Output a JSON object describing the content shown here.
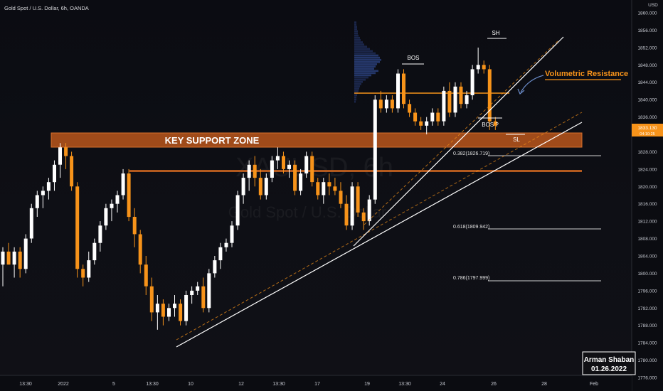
{
  "header": {
    "symbol_title": "Gold Spot / U.S. Dollar, 6h, OANDA"
  },
  "watermark": {
    "symbol": "XAUUSD, 6h",
    "description": "Gold Spot / U.S. Dollar"
  },
  "price_axis": {
    "currency": "USD",
    "ticks": [
      "1776.000",
      "1780.000",
      "1784.000",
      "1788.000",
      "1792.000",
      "1796.000",
      "1800.000",
      "1804.000",
      "1808.000",
      "1812.000",
      "1816.000",
      "1820.000",
      "1824.000",
      "1828.000",
      "1832.000",
      "1836.000",
      "1840.000",
      "1844.000",
      "1848.000",
      "1852.000",
      "1856.000",
      "1860.000"
    ],
    "last_price": "1833.130",
    "last_price_countdown": "04:10:25",
    "last_price_color": "#f7931a"
  },
  "time_axis": {
    "labels": [
      "13:30",
      "2022",
      "5",
      "13:30",
      "10",
      "12",
      "13:30",
      "17",
      "19",
      "13:30",
      "24",
      "26",
      "28",
      "Feb"
    ]
  },
  "annotations": {
    "key_support_zone": "KEY SUPPORT ZONE",
    "volumetric_resistance": "Volumetric Resistance",
    "bos_1": "BOS",
    "bos_2": "BOS ?",
    "swing_high": "SH",
    "stop_loss": "SL",
    "fib_0382": "0.382(1826.719)",
    "fib_0618": "0.618(1809.942)",
    "fib_0786": "0.786(1797.999)"
  },
  "signature": {
    "author": "Arman Shaban",
    "date": "01.26.2022"
  },
  "colors": {
    "bull": "#ffffff",
    "bear": "#f7931a",
    "zone": "#b5541b",
    "accent": "#f7931a",
    "background": "#0c0c10",
    "axis_text": "#c9ccd4"
  },
  "chart_data": {
    "type": "candlestick",
    "title": "Gold Spot / U.S. Dollar, 6h, OANDA",
    "y_range": [
      1776,
      1862
    ],
    "support_zone": [
      1829.3,
      1832.2
    ],
    "resistance_line": 1823,
    "volumetric_resistance": 1841,
    "fib_levels": [
      {
        "label": "0.382",
        "price": 1826.719
      },
      {
        "label": "0.618",
        "price": 1809.942
      },
      {
        "label": "0.786",
        "price": 1797.999
      }
    ],
    "candles": [
      {
        "o": 1802,
        "h": 1806,
        "l": 1797,
        "c": 1805
      },
      {
        "o": 1805,
        "h": 1807,
        "l": 1802,
        "c": 1802
      },
      {
        "o": 1802,
        "h": 1806,
        "l": 1799,
        "c": 1805
      },
      {
        "o": 1805,
        "h": 1806,
        "l": 1799,
        "c": 1801
      },
      {
        "o": 1801,
        "h": 1809,
        "l": 1800,
        "c": 1808
      },
      {
        "o": 1808,
        "h": 1816,
        "l": 1807,
        "c": 1815
      },
      {
        "o": 1815,
        "h": 1819,
        "l": 1813,
        "c": 1818
      },
      {
        "o": 1818,
        "h": 1820,
        "l": 1815,
        "c": 1819
      },
      {
        "o": 1819,
        "h": 1822,
        "l": 1817,
        "c": 1821
      },
      {
        "o": 1821,
        "h": 1826,
        "l": 1819,
        "c": 1825
      },
      {
        "o": 1825,
        "h": 1830,
        "l": 1822,
        "c": 1829
      },
      {
        "o": 1829,
        "h": 1830,
        "l": 1824,
        "c": 1827
      },
      {
        "o": 1827,
        "h": 1828,
        "l": 1819,
        "c": 1820
      },
      {
        "o": 1820,
        "h": 1821,
        "l": 1799,
        "c": 1801
      },
      {
        "o": 1801,
        "h": 1802,
        "l": 1797,
        "c": 1799
      },
      {
        "o": 1799,
        "h": 1805,
        "l": 1798,
        "c": 1803
      },
      {
        "o": 1803,
        "h": 1808,
        "l": 1802,
        "c": 1807
      },
      {
        "o": 1807,
        "h": 1812,
        "l": 1805,
        "c": 1811
      },
      {
        "o": 1811,
        "h": 1816,
        "l": 1810,
        "c": 1815
      },
      {
        "o": 1815,
        "h": 1817,
        "l": 1812,
        "c": 1816
      },
      {
        "o": 1816,
        "h": 1819,
        "l": 1814,
        "c": 1818
      },
      {
        "o": 1818,
        "h": 1824,
        "l": 1817,
        "c": 1823
      },
      {
        "o": 1823,
        "h": 1824,
        "l": 1812,
        "c": 1813
      },
      {
        "o": 1813,
        "h": 1815,
        "l": 1806,
        "c": 1809
      },
      {
        "o": 1809,
        "h": 1810,
        "l": 1800,
        "c": 1802
      },
      {
        "o": 1802,
        "h": 1804,
        "l": 1795,
        "c": 1797
      },
      {
        "o": 1797,
        "h": 1799,
        "l": 1789,
        "c": 1791
      },
      {
        "o": 1791,
        "h": 1795,
        "l": 1787,
        "c": 1793
      },
      {
        "o": 1793,
        "h": 1794,
        "l": 1788,
        "c": 1790
      },
      {
        "o": 1790,
        "h": 1793,
        "l": 1789,
        "c": 1792
      },
      {
        "o": 1792,
        "h": 1795,
        "l": 1790,
        "c": 1793
      },
      {
        "o": 1793,
        "h": 1794,
        "l": 1788,
        "c": 1789
      },
      {
        "o": 1789,
        "h": 1796,
        "l": 1788,
        "c": 1795
      },
      {
        "o": 1795,
        "h": 1797,
        "l": 1793,
        "c": 1796
      },
      {
        "o": 1796,
        "h": 1798,
        "l": 1795,
        "c": 1797
      },
      {
        "o": 1797,
        "h": 1799,
        "l": 1791,
        "c": 1792
      },
      {
        "o": 1792,
        "h": 1801,
        "l": 1791,
        "c": 1800
      },
      {
        "o": 1800,
        "h": 1804,
        "l": 1799,
        "c": 1803
      },
      {
        "o": 1803,
        "h": 1807,
        "l": 1801,
        "c": 1806
      },
      {
        "o": 1806,
        "h": 1808,
        "l": 1805,
        "c": 1807
      },
      {
        "o": 1807,
        "h": 1812,
        "l": 1806,
        "c": 1811
      },
      {
        "o": 1811,
        "h": 1819,
        "l": 1810,
        "c": 1818
      },
      {
        "o": 1818,
        "h": 1823,
        "l": 1816,
        "c": 1822
      },
      {
        "o": 1822,
        "h": 1826,
        "l": 1819,
        "c": 1825
      },
      {
        "o": 1825,
        "h": 1827,
        "l": 1820,
        "c": 1822
      },
      {
        "o": 1822,
        "h": 1824,
        "l": 1817,
        "c": 1818
      },
      {
        "o": 1818,
        "h": 1823,
        "l": 1817,
        "c": 1822
      },
      {
        "o": 1822,
        "h": 1827,
        "l": 1821,
        "c": 1826
      },
      {
        "o": 1826,
        "h": 1829,
        "l": 1824,
        "c": 1827
      },
      {
        "o": 1827,
        "h": 1828,
        "l": 1823,
        "c": 1824
      },
      {
        "o": 1824,
        "h": 1826,
        "l": 1822,
        "c": 1825
      },
      {
        "o": 1825,
        "h": 1826,
        "l": 1818,
        "c": 1819
      },
      {
        "o": 1819,
        "h": 1824,
        "l": 1818,
        "c": 1823
      },
      {
        "o": 1823,
        "h": 1828,
        "l": 1822,
        "c": 1827
      },
      {
        "o": 1827,
        "h": 1828,
        "l": 1820,
        "c": 1821
      },
      {
        "o": 1821,
        "h": 1822,
        "l": 1817,
        "c": 1818
      },
      {
        "o": 1818,
        "h": 1822,
        "l": 1816,
        "c": 1821
      },
      {
        "o": 1821,
        "h": 1823,
        "l": 1818,
        "c": 1820
      },
      {
        "o": 1820,
        "h": 1822,
        "l": 1818,
        "c": 1819
      },
      {
        "o": 1819,
        "h": 1821,
        "l": 1815,
        "c": 1816
      },
      {
        "o": 1816,
        "h": 1818,
        "l": 1810,
        "c": 1811
      },
      {
        "o": 1811,
        "h": 1821,
        "l": 1810,
        "c": 1820
      },
      {
        "o": 1820,
        "h": 1821,
        "l": 1813,
        "c": 1814
      },
      {
        "o": 1814,
        "h": 1815,
        "l": 1810,
        "c": 1812
      },
      {
        "o": 1812,
        "h": 1818,
        "l": 1811,
        "c": 1817
      },
      {
        "o": 1817,
        "h": 1841,
        "l": 1816,
        "c": 1840
      },
      {
        "o": 1840,
        "h": 1842,
        "l": 1837,
        "c": 1838
      },
      {
        "o": 1838,
        "h": 1841,
        "l": 1837,
        "c": 1840
      },
      {
        "o": 1840,
        "h": 1841,
        "l": 1837,
        "c": 1838
      },
      {
        "o": 1838,
        "h": 1847,
        "l": 1837,
        "c": 1846
      },
      {
        "o": 1846,
        "h": 1847,
        "l": 1838,
        "c": 1839
      },
      {
        "o": 1839,
        "h": 1840,
        "l": 1836,
        "c": 1837
      },
      {
        "o": 1837,
        "h": 1838,
        "l": 1834,
        "c": 1835
      },
      {
        "o": 1835,
        "h": 1836,
        "l": 1833,
        "c": 1834
      },
      {
        "o": 1834,
        "h": 1836,
        "l": 1832,
        "c": 1835
      },
      {
        "o": 1835,
        "h": 1838,
        "l": 1834,
        "c": 1837
      },
      {
        "o": 1837,
        "h": 1838,
        "l": 1834,
        "c": 1835
      },
      {
        "o": 1835,
        "h": 1843,
        "l": 1834,
        "c": 1842
      },
      {
        "o": 1842,
        "h": 1844,
        "l": 1836,
        "c": 1837
      },
      {
        "o": 1837,
        "h": 1844,
        "l": 1836,
        "c": 1843
      },
      {
        "o": 1843,
        "h": 1844,
        "l": 1838,
        "c": 1839
      },
      {
        "o": 1839,
        "h": 1842,
        "l": 1838,
        "c": 1841
      },
      {
        "o": 1841,
        "h": 1848,
        "l": 1840,
        "c": 1847
      },
      {
        "o": 1847,
        "h": 1852,
        "l": 1846,
        "c": 1848
      },
      {
        "o": 1848,
        "h": 1849,
        "l": 1846,
        "c": 1847
      },
      {
        "o": 1847,
        "h": 1848,
        "l": 1833,
        "c": 1835
      },
      {
        "o": 1835,
        "h": 1836,
        "l": 1833,
        "c": 1834
      }
    ]
  }
}
